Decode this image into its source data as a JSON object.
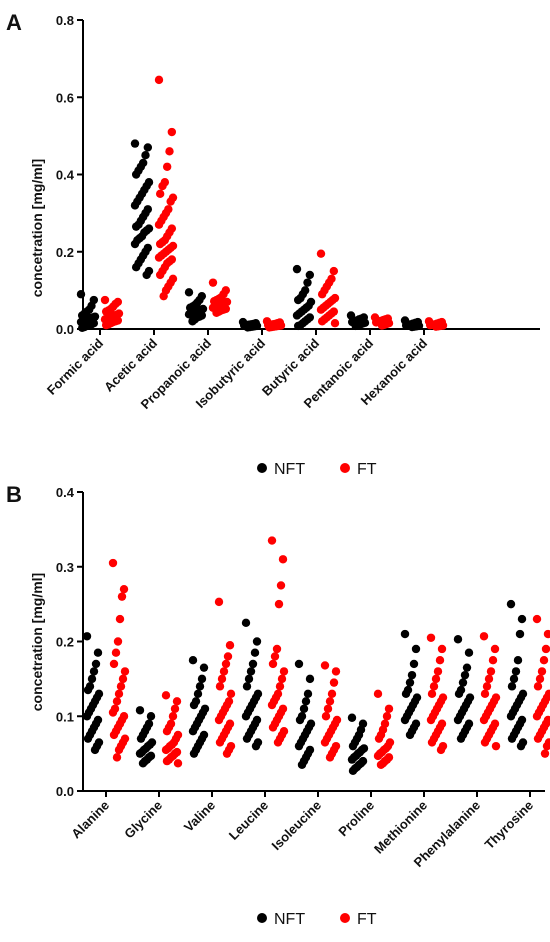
{
  "chart_data": [
    {
      "panel": "A",
      "type": "scatter",
      "ylabel": "concetration [mg/ml]",
      "xlabel": "",
      "ylim": [
        0,
        0.8
      ],
      "yticks": [
        "0.0",
        "0.2",
        "0.4",
        "0.6",
        "0.8"
      ],
      "categories": [
        "Formic acid",
        "Acetic acid",
        "Propanoic acid",
        "Isobutyric acid",
        "Butyric acid",
        "Pentanoic acid",
        "Hexanoic acid"
      ],
      "legend": [
        "NFT",
        "FT"
      ],
      "legend_position": "bottom",
      "series": [
        {
          "name": "NFT",
          "color": "#000000",
          "values": [
            [
              0.09,
              0.075,
              0.06,
              0.05,
              0.045,
              0.04,
              0.035,
              0.032,
              0.03,
              0.028,
              0.025,
              0.022,
              0.02,
              0.018,
              0.015,
              0.012,
              0.01,
              0.008,
              0.005,
              0.003
            ],
            [
              0.48,
              0.47,
              0.45,
              0.43,
              0.42,
              0.41,
              0.4,
              0.38,
              0.37,
              0.36,
              0.35,
              0.34,
              0.33,
              0.32,
              0.31,
              0.3,
              0.29,
              0.28,
              0.27,
              0.265,
              0.26,
              0.255,
              0.25,
              0.24,
              0.235,
              0.23,
              0.22,
              0.21,
              0.2,
              0.19,
              0.18,
              0.17,
              0.16,
              0.15,
              0.14
            ],
            [
              0.095,
              0.085,
              0.075,
              0.068,
              0.062,
              0.058,
              0.055,
              0.052,
              0.05,
              0.047,
              0.045,
              0.042,
              0.04,
              0.038,
              0.035,
              0.032,
              0.03,
              0.025,
              0.02
            ],
            [
              0.018,
              0.015,
              0.013,
              0.012,
              0.011,
              0.01,
              0.009,
              0.008,
              0.007,
              0.006,
              0.005,
              0.004
            ],
            [
              0.155,
              0.14,
              0.12,
              0.1,
              0.09,
              0.08,
              0.075,
              0.07,
              0.06,
              0.055,
              0.05,
              0.045,
              0.04,
              0.035,
              0.03,
              0.025,
              0.02,
              0.015,
              0.01,
              0.008
            ],
            [
              0.035,
              0.03,
              0.027,
              0.025,
              0.022,
              0.02,
              0.018,
              0.016,
              0.014,
              0.012,
              0.01,
              0.008
            ],
            [
              0.022,
              0.018,
              0.016,
              0.014,
              0.012,
              0.01,
              0.009,
              0.008,
              0.007,
              0.006,
              0.005
            ]
          ]
        },
        {
          "name": "FT",
          "color": "#ff0000",
          "values": [
            [
              0.075,
              0.07,
              0.065,
              0.058,
              0.052,
              0.048,
              0.045,
              0.04,
              0.037,
              0.035,
              0.032,
              0.03,
              0.027,
              0.025,
              0.022,
              0.02,
              0.018,
              0.015,
              0.012,
              0.01
            ],
            [
              0.645,
              0.51,
              0.46,
              0.42,
              0.38,
              0.37,
              0.35,
              0.34,
              0.33,
              0.31,
              0.3,
              0.29,
              0.28,
              0.27,
              0.26,
              0.25,
              0.24,
              0.23,
              0.225,
              0.22,
              0.215,
              0.21,
              0.205,
              0.2,
              0.195,
              0.19,
              0.185,
              0.18,
              0.175,
              0.17,
              0.16,
              0.15,
              0.14,
              0.13,
              0.12,
              0.11,
              0.1,
              0.085
            ],
            [
              0.12,
              0.1,
              0.09,
              0.082,
              0.078,
              0.075,
              0.072,
              0.07,
              0.068,
              0.065,
              0.062,
              0.06,
              0.058,
              0.055,
              0.052,
              0.05,
              0.048,
              0.045,
              0.042
            ],
            [
              0.02,
              0.017,
              0.015,
              0.013,
              0.012,
              0.011,
              0.01,
              0.009,
              0.008,
              0.007,
              0.006,
              0.005,
              0.004
            ],
            [
              0.195,
              0.15,
              0.13,
              0.12,
              0.11,
              0.1,
              0.09,
              0.08,
              0.075,
              0.07,
              0.065,
              0.06,
              0.055,
              0.05,
              0.045,
              0.04,
              0.035,
              0.03,
              0.025,
              0.02,
              0.015
            ],
            [
              0.03,
              0.027,
              0.025,
              0.023,
              0.021,
              0.019,
              0.017,
              0.015,
              0.013,
              0.011,
              0.009
            ],
            [
              0.02,
              0.018,
              0.016,
              0.014,
              0.012,
              0.011,
              0.01,
              0.009,
              0.008,
              0.007,
              0.006
            ]
          ]
        }
      ]
    },
    {
      "panel": "B",
      "type": "scatter",
      "ylabel": "concetration [mg/ml]",
      "xlabel": "",
      "ylim": [
        0,
        0.4
      ],
      "yticks": [
        "0.0",
        "0.1",
        "0.2",
        "0.3",
        "0.4"
      ],
      "categories": [
        "Alanine",
        "Glycine",
        "Valine",
        "Leucine",
        "Isoleucine",
        "Proline",
        "Methionine",
        "Phenylalanine",
        "Thyrosine"
      ],
      "legend": [
        "NFT",
        "FT"
      ],
      "legend_position": "bottom",
      "series": [
        {
          "name": "NFT",
          "color": "#000000",
          "values": [
            [
              0.207,
              0.185,
              0.17,
              0.16,
              0.15,
              0.14,
              0.135,
              0.13,
              0.125,
              0.12,
              0.115,
              0.11,
              0.105,
              0.1,
              0.095,
              0.09,
              0.085,
              0.08,
              0.075,
              0.07,
              0.065,
              0.06,
              0.055
            ],
            [
              0.108,
              0.1,
              0.09,
              0.085,
              0.08,
              0.075,
              0.07,
              0.065,
              0.062,
              0.06,
              0.057,
              0.055,
              0.052,
              0.05,
              0.047,
              0.045,
              0.042,
              0.04,
              0.037
            ],
            [
              0.175,
              0.165,
              0.15,
              0.14,
              0.13,
              0.12,
              0.115,
              0.11,
              0.105,
              0.1,
              0.095,
              0.09,
              0.085,
              0.08,
              0.075,
              0.07,
              0.065,
              0.06,
              0.055,
              0.05
            ],
            [
              0.225,
              0.2,
              0.185,
              0.17,
              0.16,
              0.15,
              0.14,
              0.13,
              0.125,
              0.12,
              0.115,
              0.11,
              0.105,
              0.1,
              0.095,
              0.09,
              0.085,
              0.08,
              0.075,
              0.07,
              0.065,
              0.06
            ],
            [
              0.17,
              0.15,
              0.13,
              0.12,
              0.11,
              0.1,
              0.095,
              0.09,
              0.085,
              0.08,
              0.075,
              0.07,
              0.065,
              0.06,
              0.055,
              0.05,
              0.045,
              0.04,
              0.035
            ],
            [
              0.098,
              0.09,
              0.082,
              0.075,
              0.07,
              0.065,
              0.06,
              0.057,
              0.055,
              0.052,
              0.05,
              0.047,
              0.045,
              0.042,
              0.04,
              0.037,
              0.035,
              0.032,
              0.03,
              0.027
            ],
            [
              0.21,
              0.19,
              0.17,
              0.155,
              0.145,
              0.135,
              0.13,
              0.125,
              0.12,
              0.115,
              0.11,
              0.105,
              0.1,
              0.095,
              0.09,
              0.085,
              0.08,
              0.075
            ],
            [
              0.203,
              0.185,
              0.165,
              0.155,
              0.145,
              0.135,
              0.13,
              0.125,
              0.12,
              0.115,
              0.11,
              0.105,
              0.1,
              0.095,
              0.09,
              0.085,
              0.08,
              0.075,
              0.07
            ],
            [
              0.25,
              0.23,
              0.21,
              0.175,
              0.16,
              0.15,
              0.14,
              0.13,
              0.125,
              0.12,
              0.115,
              0.11,
              0.105,
              0.1,
              0.095,
              0.09,
              0.085,
              0.08,
              0.075,
              0.07,
              0.065,
              0.06
            ]
          ]
        },
        {
          "name": "FT",
          "color": "#ff0000",
          "values": [
            [
              0.305,
              0.27,
              0.26,
              0.23,
              0.2,
              0.185,
              0.17,
              0.16,
              0.15,
              0.14,
              0.13,
              0.12,
              0.11,
              0.105,
              0.1,
              0.095,
              0.09,
              0.085,
              0.08,
              0.075,
              0.07,
              0.065,
              0.06,
              0.055,
              0.045
            ],
            [
              0.128,
              0.12,
              0.11,
              0.1,
              0.09,
              0.085,
              0.08,
              0.075,
              0.07,
              0.065,
              0.062,
              0.06,
              0.057,
              0.055,
              0.052,
              0.05,
              0.047,
              0.045,
              0.042,
              0.04,
              0.037
            ],
            [
              0.253,
              0.195,
              0.18,
              0.17,
              0.16,
              0.15,
              0.14,
              0.13,
              0.12,
              0.115,
              0.11,
              0.105,
              0.1,
              0.095,
              0.09,
              0.085,
              0.08,
              0.075,
              0.07,
              0.065,
              0.06,
              0.055,
              0.05
            ],
            [
              0.335,
              0.31,
              0.275,
              0.25,
              0.19,
              0.18,
              0.17,
              0.16,
              0.15,
              0.14,
              0.13,
              0.125,
              0.12,
              0.115,
              0.11,
              0.105,
              0.1,
              0.095,
              0.09,
              0.085,
              0.08,
              0.075,
              0.07,
              0.065
            ],
            [
              0.168,
              0.16,
              0.145,
              0.13,
              0.12,
              0.11,
              0.1,
              0.095,
              0.09,
              0.085,
              0.08,
              0.075,
              0.07,
              0.065,
              0.06,
              0.055,
              0.05,
              0.045
            ],
            [
              0.13,
              0.11,
              0.1,
              0.09,
              0.082,
              0.075,
              0.07,
              0.065,
              0.06,
              0.057,
              0.055,
              0.052,
              0.05,
              0.047,
              0.045,
              0.042,
              0.04,
              0.037,
              0.035
            ],
            [
              0.205,
              0.19,
              0.175,
              0.16,
              0.15,
              0.14,
              0.13,
              0.125,
              0.12,
              0.115,
              0.11,
              0.105,
              0.1,
              0.095,
              0.09,
              0.085,
              0.08,
              0.075,
              0.07,
              0.065,
              0.06,
              0.055
            ],
            [
              0.207,
              0.19,
              0.175,
              0.16,
              0.15,
              0.14,
              0.13,
              0.125,
              0.12,
              0.115,
              0.11,
              0.105,
              0.1,
              0.095,
              0.09,
              0.085,
              0.08,
              0.075,
              0.07,
              0.065,
              0.06
            ],
            [
              0.23,
              0.21,
              0.19,
              0.175,
              0.16,
              0.15,
              0.14,
              0.13,
              0.125,
              0.12,
              0.115,
              0.11,
              0.105,
              0.1,
              0.095,
              0.09,
              0.085,
              0.08,
              0.075,
              0.07,
              0.065,
              0.06,
              0.05
            ]
          ]
        }
      ]
    }
  ]
}
